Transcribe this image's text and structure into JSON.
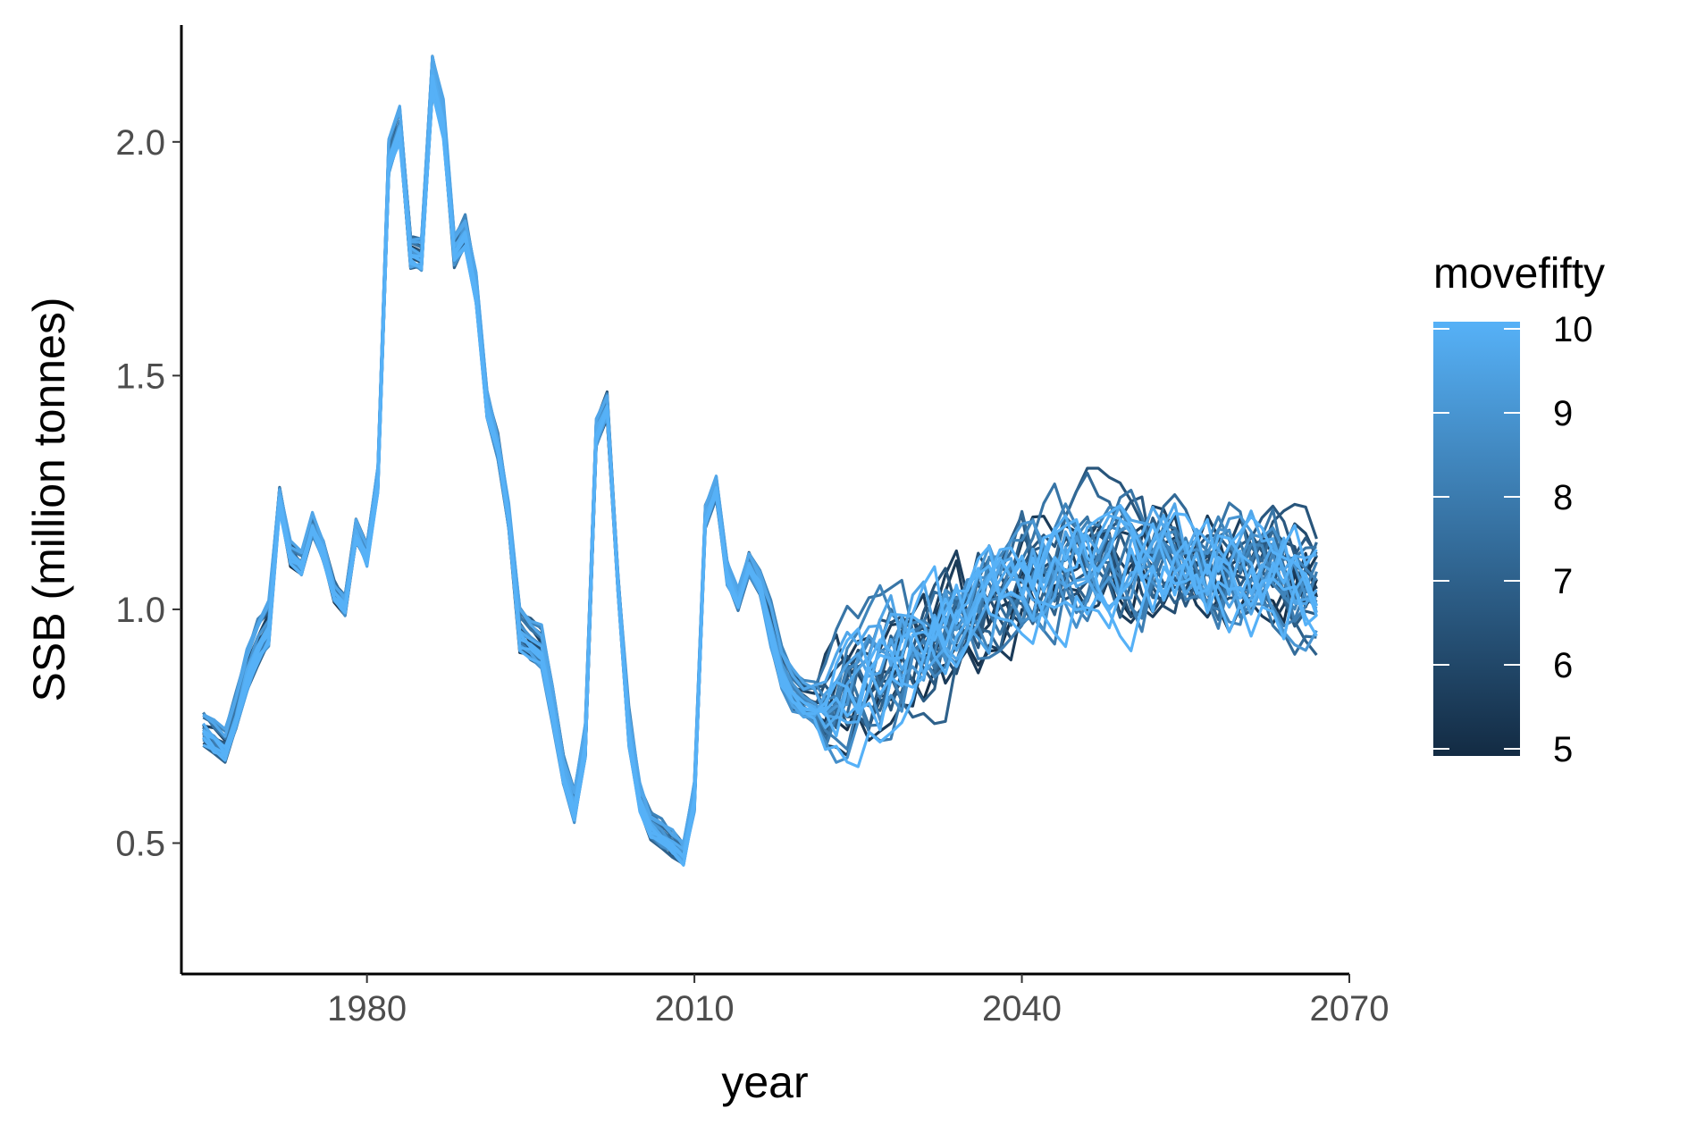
{
  "chart_data": {
    "type": "line",
    "title": "",
    "xlabel": "year",
    "ylabel": "SSB (million  tonnes)",
    "xlim": [
      1963,
      2070
    ],
    "ylim": [
      0.22,
      2.25
    ],
    "x_ticks": [
      {
        "value": 1980,
        "label": "1980"
      },
      {
        "value": 2010,
        "label": "2010"
      },
      {
        "value": 2040,
        "label": "2040"
      },
      {
        "value": 2070,
        "label": "2070"
      }
    ],
    "y_ticks": [
      {
        "value": 0.5,
        "label": "0.5"
      },
      {
        "value": 1.0,
        "label": "1.0"
      },
      {
        "value": 1.5,
        "label": "1.5"
      },
      {
        "value": 2.0,
        "label": "2.0"
      }
    ],
    "grid": false,
    "legend": {
      "title": "movefifty",
      "position": "right",
      "type": "colorbar",
      "range": [
        5,
        10
      ],
      "labels": [
        "10",
        "9",
        "8",
        "7",
        "6",
        "5"
      ],
      "label_values": [
        10,
        9,
        8,
        7,
        6,
        5
      ],
      "color_low": "#132B43",
      "color_high": "#56B1F7"
    },
    "historical": {
      "years": [
        1965,
        1966,
        1967,
        1968,
        1969,
        1970,
        1971,
        1972,
        1973,
        1974,
        1975,
        1976,
        1977,
        1978,
        1979,
        1980,
        1981,
        1982,
        1983,
        1984,
        1985,
        1986,
        1987,
        1988,
        1989,
        1990,
        1991,
        1992,
        1993,
        1994,
        1995,
        1996,
        1997,
        1998,
        1999,
        2000,
        2001,
        2002,
        2003,
        2004,
        2005,
        2006,
        2007,
        2008,
        2009,
        2010,
        2011,
        2012,
        2013,
        2014,
        2015,
        2016,
        2017,
        2018,
        2019,
        2020,
        2021
      ],
      "values": [
        0.75,
        0.73,
        0.71,
        0.78,
        0.87,
        0.93,
        0.97,
        1.24,
        1.12,
        1.1,
        1.18,
        1.13,
        1.04,
        1.01,
        1.17,
        1.12,
        1.28,
        1.97,
        2.04,
        1.77,
        1.76,
        2.15,
        2.05,
        1.77,
        1.81,
        1.69,
        1.44,
        1.35,
        1.2,
        0.96,
        0.94,
        0.92,
        0.8,
        0.66,
        0.58,
        0.72,
        1.38,
        1.44,
        1.06,
        0.75,
        0.6,
        0.54,
        0.52,
        0.5,
        0.48,
        0.6,
        1.2,
        1.26,
        1.08,
        1.02,
        1.1,
        1.06,
        0.97,
        0.88,
        0.83,
        0.81,
        0.8
      ]
    },
    "series_count": 30,
    "projection_years": [
      2022,
      2067
    ],
    "projection_level_start": 0.82,
    "projection_level_peak": 1.13,
    "projection_level_end": 1.07
  }
}
